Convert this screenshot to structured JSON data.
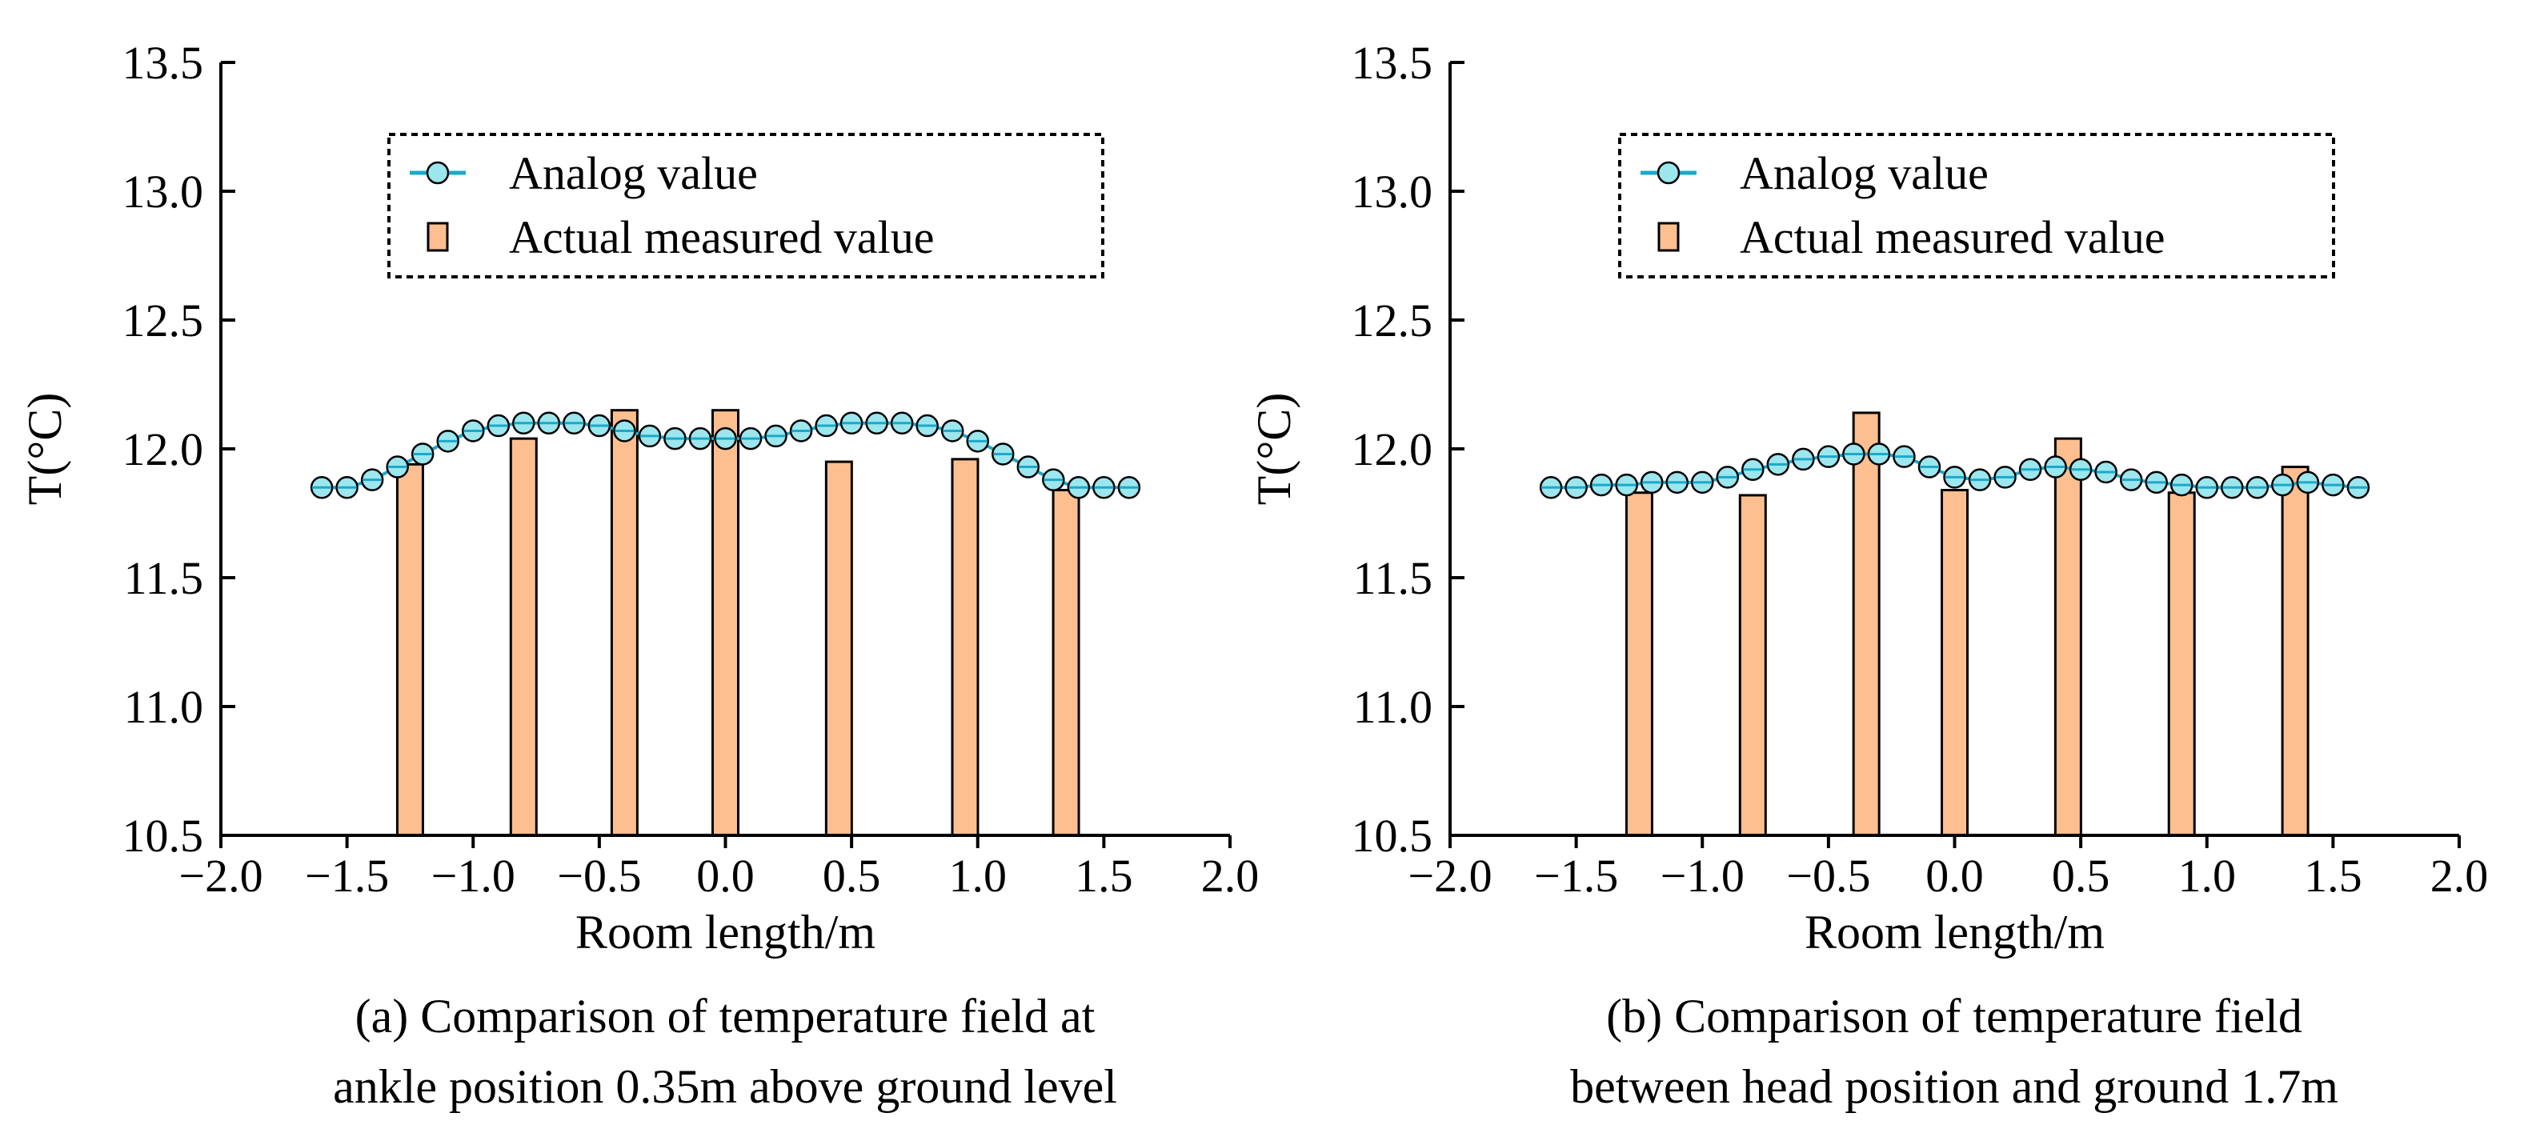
{
  "colors": {
    "bar_fill": "#FDBF8F",
    "bar_stroke": "#000000",
    "marker_fill": "#9CE6EE",
    "line_color": "#1BA9C8",
    "axis": "#000000"
  },
  "chart_data": [
    {
      "type": "bar+line",
      "caption_lines": [
        "(a) Comparison of temperature field at",
        "ankle position 0.35m above ground level"
      ],
      "xlabel": "Room length/m",
      "ylabel": "T(°C)",
      "xlim": [
        -2.0,
        2.0
      ],
      "ylim": [
        10.5,
        13.5
      ],
      "xticks": [
        -2.0,
        -1.5,
        -1.0,
        -0.5,
        0.0,
        0.5,
        1.0,
        1.5,
        2.0
      ],
      "xtick_labels": [
        "−2.0",
        "−1.5",
        "−1.0",
        "−0.5",
        "0.0",
        "0.5",
        "1.0",
        "1.5",
        "2.0"
      ],
      "yticks": [
        10.5,
        11.0,
        11.5,
        12.0,
        12.5,
        13.0,
        13.5
      ],
      "ytick_labels": [
        "10.5",
        "11.0",
        "11.5",
        "12.0",
        "12.5",
        "13.0",
        "13.5"
      ],
      "legend": [
        "Analog value",
        "Actual measured value"
      ],
      "legend_position": "top-center",
      "series": [
        {
          "name": "Analog value",
          "kind": "line-marker",
          "x": [
            -1.6,
            -1.5,
            -1.4,
            -1.3,
            -1.2,
            -1.1,
            -1.0,
            -0.9,
            -0.8,
            -0.7,
            -0.6,
            -0.5,
            -0.4,
            -0.3,
            -0.2,
            -0.1,
            0.0,
            0.1,
            0.2,
            0.3,
            0.4,
            0.5,
            0.6,
            0.7,
            0.8,
            0.9,
            1.0,
            1.1,
            1.2,
            1.3,
            1.4,
            1.5,
            1.6
          ],
          "y": [
            11.85,
            11.85,
            11.88,
            11.93,
            11.98,
            12.03,
            12.07,
            12.09,
            12.1,
            12.1,
            12.1,
            12.09,
            12.07,
            12.05,
            12.04,
            12.04,
            12.04,
            12.04,
            12.05,
            12.07,
            12.09,
            12.1,
            12.1,
            12.1,
            12.09,
            12.07,
            12.03,
            11.98,
            11.93,
            11.88,
            11.85,
            11.85,
            11.85
          ]
        },
        {
          "name": "Actual measured value",
          "kind": "bar",
          "x": [
            -1.25,
            -0.8,
            -0.4,
            0.0,
            0.45,
            0.95,
            1.35
          ],
          "y": [
            11.94,
            12.04,
            12.15,
            12.15,
            11.95,
            11.96,
            11.84
          ]
        }
      ]
    },
    {
      "type": "bar+line",
      "caption_lines": [
        "(b) Comparison of temperature field",
        "between head position and ground 1.7m"
      ],
      "xlabel": "Room length/m",
      "ylabel": "T(°C)",
      "xlim": [
        -2.0,
        2.0
      ],
      "ylim": [
        10.5,
        13.5
      ],
      "xticks": [
        -2.0,
        -1.5,
        -1.0,
        -0.5,
        0.0,
        0.5,
        1.0,
        1.5,
        2.0
      ],
      "xtick_labels": [
        "−2.0",
        "−1.5",
        "−1.0",
        "−0.5",
        "0.0",
        "0.5",
        "1.0",
        "1.5",
        "2.0"
      ],
      "yticks": [
        10.5,
        11.0,
        11.5,
        12.0,
        12.5,
        13.0,
        13.5
      ],
      "ytick_labels": [
        "10.5",
        "11.0",
        "11.5",
        "12.0",
        "12.5",
        "13.0",
        "13.5"
      ],
      "legend": [
        "Analog value",
        "Actual measured value"
      ],
      "legend_position": "top-center",
      "series": [
        {
          "name": "Analog value",
          "kind": "line-marker",
          "x": [
            -1.6,
            -1.5,
            -1.4,
            -1.3,
            -1.2,
            -1.1,
            -1.0,
            -0.9,
            -0.8,
            -0.7,
            -0.6,
            -0.5,
            -0.4,
            -0.3,
            -0.2,
            -0.1,
            0.0,
            0.1,
            0.2,
            0.3,
            0.4,
            0.5,
            0.6,
            0.7,
            0.8,
            0.9,
            1.0,
            1.1,
            1.2,
            1.3,
            1.4,
            1.5,
            1.6
          ],
          "y": [
            11.85,
            11.85,
            11.86,
            11.86,
            11.87,
            11.87,
            11.87,
            11.89,
            11.92,
            11.94,
            11.96,
            11.97,
            11.98,
            11.98,
            11.97,
            11.93,
            11.89,
            11.88,
            11.89,
            11.92,
            11.93,
            11.92,
            11.91,
            11.88,
            11.87,
            11.86,
            11.85,
            11.85,
            11.85,
            11.86,
            11.87,
            11.86,
            11.85
          ]
        },
        {
          "name": "Actual measured value",
          "kind": "bar",
          "x": [
            -1.25,
            -0.8,
            -0.35,
            0.0,
            0.45,
            0.9,
            1.35
          ],
          "y": [
            11.83,
            11.82,
            12.14,
            11.84,
            12.04,
            11.83,
            11.93
          ]
        }
      ]
    }
  ]
}
